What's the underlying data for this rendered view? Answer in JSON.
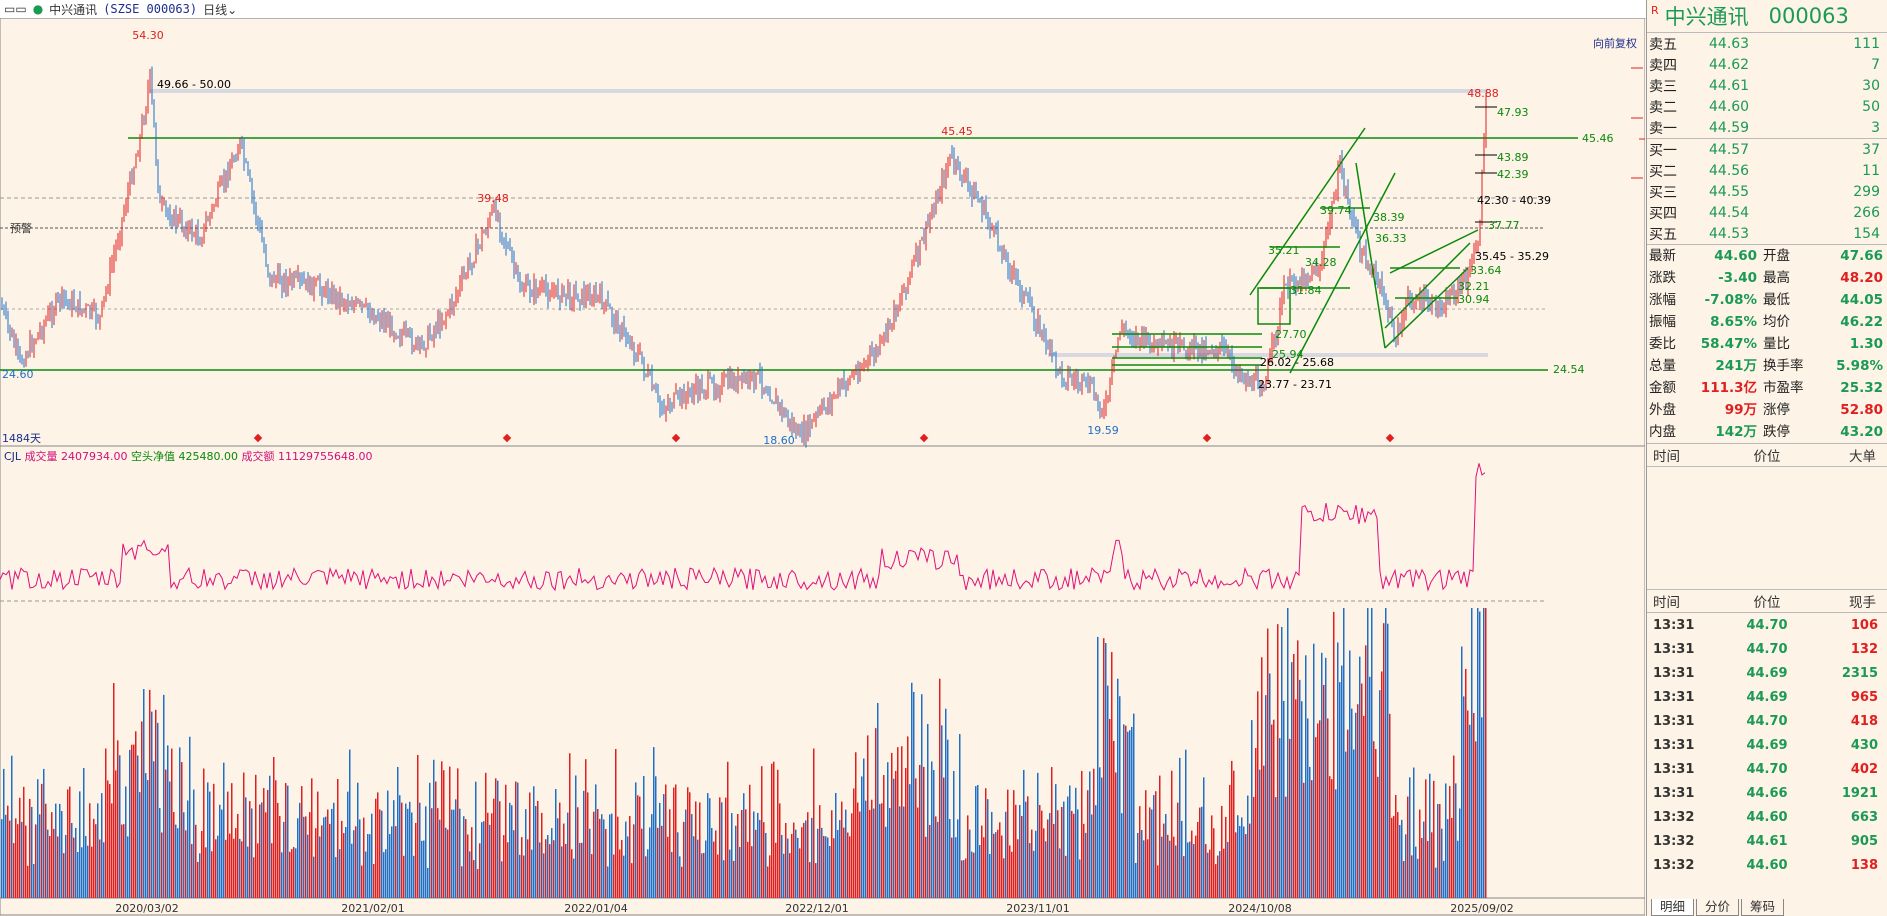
{
  "toolbar": {
    "stock": "中兴通讯",
    "symbol": "(SZSE 000063)",
    "period": "日线"
  },
  "chart": {
    "restore_button": "向前复权",
    "alarm_label": "预警",
    "days_label": "1484天",
    "price_labels": [
      "54.30",
      "49.66 - 50.00",
      "45.45",
      "45.46",
      "39.48",
      "24.60",
      "24.54",
      "18.60",
      "19.59",
      "48.88",
      "47.93",
      "43.89",
      "42.39",
      "42.30 - 40.39",
      "37.77",
      "38.39",
      "36.33",
      "35.21",
      "34.28",
      "31.84",
      "35.45 - 35.29",
      "33.64",
      "32.21",
      "30.94",
      "27.70",
      "25.94",
      "26.02 - 25.68",
      "23.77 - 23.71",
      "39.74"
    ],
    "dates": [
      "2020/03/02",
      "2021/02/01",
      "2022/01/04",
      "2022/12/01",
      "2023/11/01",
      "2024/10/08",
      "2025/09/02"
    ],
    "indicator": {
      "name": "CJL",
      "vol_label": "成交量",
      "vol_value": "2407934.00",
      "net_label": "空头净值",
      "net_value": "425480.00",
      "amt_label": "成交额",
      "amt_value": "11129755648.00"
    }
  },
  "chart_data": {
    "type": "line",
    "title": "中兴通讯 日线",
    "x_labels": [
      "2020/03/02",
      "2021/02/01",
      "2022/01/04",
      "2022/12/01",
      "2023/11/01",
      "2024/10/08",
      "2025/09/02"
    ],
    "y_range": [
      17,
      56
    ],
    "key_levels": [
      45.46,
      24.54
    ],
    "peaks": [
      {
        "x": "2020/03",
        "y": 54.3
      },
      {
        "x": "2021/09",
        "y": 39.48
      },
      {
        "x": "2023/06",
        "y": 45.45
      },
      {
        "x": "2025/09",
        "y": 48.88
      }
    ],
    "troughs": [
      {
        "x": "2019/12",
        "y": 24.6
      },
      {
        "x": "2022/10",
        "y": 18.6
      },
      {
        "x": "2024/02",
        "y": 19.59
      }
    ]
  },
  "quote": {
    "flag": "R",
    "name": "中兴通讯",
    "code": "000063",
    "asks": [
      {
        "label": "卖五",
        "price": "44.63",
        "vol": "111"
      },
      {
        "label": "卖四",
        "price": "44.62",
        "vol": "7"
      },
      {
        "label": "卖三",
        "price": "44.61",
        "vol": "30"
      },
      {
        "label": "卖二",
        "price": "44.60",
        "vol": "50"
      },
      {
        "label": "卖一",
        "price": "44.59",
        "vol": "3"
      }
    ],
    "bids": [
      {
        "label": "买一",
        "price": "44.57",
        "vol": "37"
      },
      {
        "label": "买二",
        "price": "44.56",
        "vol": "11"
      },
      {
        "label": "买三",
        "price": "44.55",
        "vol": "299"
      },
      {
        "label": "买四",
        "price": "44.54",
        "vol": "266"
      },
      {
        "label": "买五",
        "price": "44.53",
        "vol": "154"
      }
    ],
    "stats": [
      {
        "l1": "最新",
        "v1": "44.60",
        "c1": "green",
        "l2": "开盘",
        "v2": "47.66",
        "c2": "green"
      },
      {
        "l1": "涨跌",
        "v1": "-3.40",
        "c1": "green",
        "l2": "最高",
        "v2": "48.20",
        "c2": "red"
      },
      {
        "l1": "涨幅",
        "v1": "-7.08%",
        "c1": "green",
        "l2": "最低",
        "v2": "44.05",
        "c2": "green"
      },
      {
        "l1": "振幅",
        "v1": "8.65%",
        "c1": "green",
        "l2": "均价",
        "v2": "46.22",
        "c2": "green"
      },
      {
        "l1": "委比",
        "v1": "58.47%",
        "c1": "green",
        "l2": "量比",
        "v2": "1.30",
        "c2": "green"
      },
      {
        "l1": "总量",
        "v1": "241万",
        "c1": "green",
        "l2": "换手率",
        "v2": "5.98%",
        "c2": "green"
      },
      {
        "l1": "金额",
        "v1": "111.3亿",
        "c1": "red",
        "l2": "市盈率",
        "v2": "25.32",
        "c2": "green"
      },
      {
        "l1": "外盘",
        "v1": "99万",
        "c1": "red",
        "l2": "涨停",
        "v2": "52.80",
        "c2": "red"
      },
      {
        "l1": "内盘",
        "v1": "142万",
        "c1": "green",
        "l2": "跌停",
        "v2": "43.20",
        "c2": "green"
      }
    ],
    "big_header": {
      "time": "时间",
      "price": "价位",
      "big": "大单"
    },
    "tick_header": {
      "time": "时间",
      "price": "价位",
      "qty": "现手"
    },
    "ticks": [
      {
        "time": "13:31",
        "price": "44.70",
        "qty": "106",
        "c": "red"
      },
      {
        "time": "13:31",
        "price": "44.70",
        "qty": "132",
        "c": "red"
      },
      {
        "time": "13:31",
        "price": "44.69",
        "qty": "2315",
        "c": "green"
      },
      {
        "time": "13:31",
        "price": "44.69",
        "qty": "965",
        "c": "red"
      },
      {
        "time": "13:31",
        "price": "44.70",
        "qty": "418",
        "c": "red"
      },
      {
        "time": "13:31",
        "price": "44.69",
        "qty": "430",
        "c": "green"
      },
      {
        "time": "13:31",
        "price": "44.70",
        "qty": "402",
        "c": "red"
      },
      {
        "time": "13:31",
        "price": "44.66",
        "qty": "1921",
        "c": "green"
      },
      {
        "time": "13:32",
        "price": "44.60",
        "qty": "663",
        "c": "green"
      },
      {
        "time": "13:32",
        "price": "44.61",
        "qty": "905",
        "c": "green"
      },
      {
        "time": "13:32",
        "price": "44.60",
        "qty": "138",
        "c": "red"
      }
    ],
    "tabs": [
      "明细",
      "分价",
      "筹码"
    ]
  }
}
